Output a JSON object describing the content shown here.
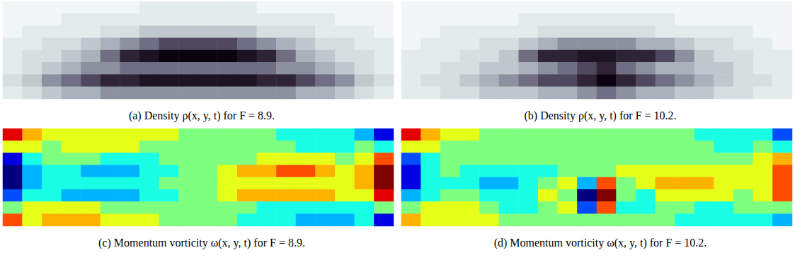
{
  "chart_data": [
    {
      "type": "heatmap",
      "title": "(a) Density ρ(x, y, t) for F = 8.9.",
      "color": "gray_r",
      "tick_labels": false,
      "value_range": [
        0,
        10
      ],
      "cells": [
        [
          0,
          0,
          0,
          0,
          0,
          0,
          0,
          1,
          1,
          1,
          1,
          1,
          1,
          0,
          0,
          0,
          0,
          0,
          0,
          0
        ],
        [
          0,
          0,
          0,
          1,
          1,
          1,
          1,
          1,
          1,
          1,
          1,
          1,
          1,
          1,
          1,
          1,
          1,
          0,
          0,
          0
        ],
        [
          0,
          1,
          1,
          1,
          1,
          2,
          2,
          3,
          3,
          3,
          3,
          3,
          3,
          2,
          2,
          2,
          1,
          1,
          1,
          0
        ],
        [
          1,
          1,
          2,
          2,
          3,
          4,
          5,
          6,
          7,
          7,
          7,
          7,
          6,
          5,
          4,
          3,
          2,
          2,
          1,
          1
        ],
        [
          1,
          2,
          2,
          3,
          4,
          6,
          8,
          9,
          10,
          10,
          10,
          10,
          9,
          8,
          6,
          4,
          3,
          2,
          2,
          1
        ],
        [
          1,
          2,
          3,
          4,
          5,
          5,
          6,
          6,
          6,
          6,
          6,
          6,
          6,
          6,
          5,
          5,
          4,
          3,
          2,
          1
        ],
        [
          2,
          3,
          5,
          6,
          7,
          8,
          8,
          9,
          9,
          9,
          9,
          9,
          9,
          8,
          8,
          7,
          6,
          5,
          3,
          2
        ],
        [
          1,
          2,
          3,
          4,
          4,
          5,
          5,
          5,
          5,
          5,
          5,
          5,
          5,
          5,
          5,
          4,
          4,
          3,
          2,
          1
        ]
      ]
    },
    {
      "type": "heatmap",
      "title": "(b) Density ρ(x, y, t) for F = 10.2.",
      "color": "gray_r",
      "tick_labels": false,
      "value_range": [
        0,
        10
      ],
      "cells": [
        [
          0,
          0,
          0,
          0,
          0,
          0,
          0,
          0,
          0,
          0,
          0,
          0,
          0,
          0,
          0,
          0,
          0,
          0,
          0,
          0
        ],
        [
          0,
          0,
          0,
          0,
          0,
          0,
          1,
          1,
          1,
          1,
          1,
          1,
          1,
          1,
          0,
          0,
          0,
          0,
          0,
          0
        ],
        [
          0,
          0,
          1,
          1,
          1,
          1,
          1,
          2,
          2,
          2,
          2,
          2,
          2,
          1,
          1,
          1,
          1,
          1,
          0,
          0
        ],
        [
          0,
          1,
          1,
          1,
          2,
          2,
          3,
          4,
          5,
          5,
          5,
          5,
          4,
          4,
          3,
          2,
          2,
          1,
          1,
          0
        ],
        [
          1,
          1,
          1,
          2,
          2,
          3,
          6,
          8,
          8,
          9,
          9,
          8,
          8,
          7,
          5,
          3,
          2,
          2,
          1,
          1
        ],
        [
          1,
          1,
          2,
          2,
          3,
          3,
          4,
          5,
          6,
          7,
          8,
          6,
          5,
          4,
          4,
          3,
          3,
          2,
          1,
          1
        ],
        [
          1,
          2,
          2,
          3,
          4,
          5,
          6,
          7,
          7,
          8,
          10,
          8,
          7,
          6,
          5,
          4,
          3,
          2,
          2,
          1
        ],
        [
          1,
          1,
          2,
          2,
          3,
          3,
          3,
          4,
          4,
          5,
          6,
          5,
          4,
          4,
          3,
          3,
          2,
          2,
          1,
          1
        ]
      ]
    },
    {
      "type": "heatmap",
      "title": "(c) Momentum vorticity ω(x, y, t) for F = 8.9.",
      "color": "jet",
      "tick_labels": false,
      "value_range": [
        -5,
        5
      ],
      "cells": [
        [
          4,
          2,
          1,
          1,
          1,
          1,
          1,
          1,
          1,
          0,
          0,
          0,
          0,
          0,
          -1,
          -1,
          -1,
          -1,
          -2,
          -4
        ],
        [
          1,
          1,
          0,
          1,
          1,
          1,
          1,
          0,
          0,
          0,
          0,
          0,
          0,
          0,
          0,
          -1,
          -1,
          -1,
          0,
          -1
        ],
        [
          -4,
          -1,
          0,
          0,
          0,
          -1,
          -1,
          -1,
          0,
          0,
          0,
          0,
          0,
          1,
          1,
          1,
          1,
          0,
          1,
          3
        ],
        [
          -5,
          -2,
          -1,
          -1,
          -2,
          -2,
          -2,
          -1,
          -1,
          0,
          0,
          1,
          2,
          2,
          3,
          3,
          2,
          1,
          2,
          5
        ],
        [
          -5,
          -2,
          -1,
          -1,
          -1,
          -1,
          -1,
          -1,
          0,
          0,
          0,
          1,
          1,
          1,
          1,
          1,
          1,
          1,
          2,
          5
        ],
        [
          -3,
          -1,
          -1,
          -2,
          -2,
          -2,
          -2,
          -1,
          -1,
          0,
          0,
          1,
          2,
          2,
          2,
          2,
          2,
          1,
          1,
          4
        ],
        [
          0,
          1,
          1,
          1,
          1,
          0,
          0,
          0,
          0,
          0,
          0,
          0,
          0,
          -1,
          -1,
          -1,
          -1,
          -1,
          -1,
          0
        ],
        [
          3,
          1,
          2,
          2,
          2,
          1,
          1,
          1,
          0,
          0,
          0,
          0,
          -1,
          -1,
          -1,
          -2,
          -2,
          -2,
          -1,
          -4
        ]
      ]
    },
    {
      "type": "heatmap",
      "title": "(d) Momentum vorticity ω(x, y, t) for F = 10.2.",
      "color": "jet",
      "tick_labels": false,
      "value_range": [
        -5,
        5
      ],
      "cells": [
        [
          4,
          2,
          1,
          1,
          0,
          0,
          0,
          0,
          0,
          0,
          0,
          0,
          0,
          0,
          0,
          -1,
          -1,
          -1,
          -1,
          -3
        ],
        [
          1,
          1,
          0,
          0,
          0,
          0,
          0,
          0,
          0,
          0,
          0,
          0,
          0,
          0,
          0,
          0,
          -1,
          -1,
          0,
          -1
        ],
        [
          -3,
          -1,
          0,
          0,
          0,
          0,
          0,
          0,
          0,
          0,
          0,
          0,
          0,
          0,
          0,
          0,
          0,
          0,
          1,
          2
        ],
        [
          -4,
          -1,
          0,
          -1,
          -1,
          -1,
          -1,
          -1,
          0,
          0,
          0,
          1,
          1,
          1,
          1,
          1,
          1,
          1,
          1,
          3
        ],
        [
          -4,
          -1,
          -1,
          -1,
          -2,
          -2,
          -1,
          0,
          1,
          -2,
          3,
          0,
          1,
          2,
          2,
          2,
          1,
          1,
          1,
          3
        ],
        [
          -2,
          -1,
          0,
          0,
          -1,
          -1,
          -1,
          1,
          0,
          -5,
          5,
          0,
          -1,
          1,
          1,
          1,
          1,
          0,
          1,
          3
        ],
        [
          0,
          1,
          1,
          1,
          0,
          -1,
          -1,
          0,
          1,
          -3,
          3,
          -1,
          -1,
          0,
          0,
          -1,
          -1,
          0,
          0,
          0
        ],
        [
          2,
          1,
          1,
          1,
          1,
          0,
          0,
          0,
          0,
          0,
          0,
          0,
          0,
          0,
          -1,
          -1,
          -1,
          -1,
          -1,
          -2
        ]
      ]
    }
  ]
}
